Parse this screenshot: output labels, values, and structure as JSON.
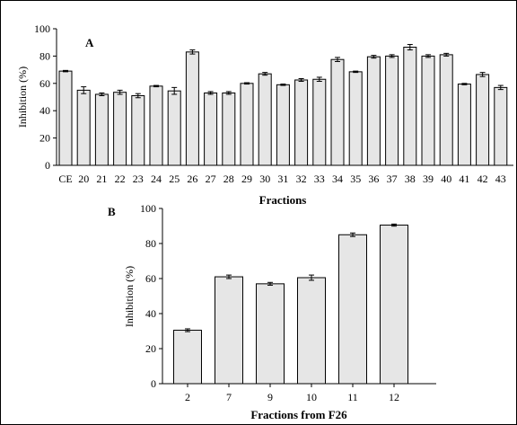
{
  "chart_data": [
    {
      "type": "bar",
      "panel_label": "A",
      "ylabel": "Inhibition (%)",
      "xlabel": "Fractions",
      "ylim": [
        0,
        100
      ],
      "yticks": [
        "0",
        "20",
        "40",
        "60",
        "80",
        "100"
      ],
      "categories": [
        "CE",
        "20",
        "21",
        "22",
        "23",
        "24",
        "25",
        "26",
        "27",
        "28",
        "29",
        "30",
        "31",
        "32",
        "33",
        "34",
        "35",
        "36",
        "37",
        "38",
        "39",
        "40",
        "41",
        "42",
        "43"
      ],
      "values": [
        69,
        55,
        52,
        53.5,
        51,
        58,
        54.5,
        83,
        53,
        53,
        60,
        67,
        59,
        62.5,
        63,
        77.5,
        68.5,
        79.5,
        80,
        86.5,
        80,
        81,
        59.5,
        66.5,
        57
      ],
      "errors": [
        0.5,
        2.5,
        1,
        1.5,
        1.5,
        0.5,
        2.5,
        1.5,
        1,
        1,
        0.5,
        1,
        0.5,
        1,
        1.5,
        1.5,
        0.5,
        1,
        1,
        2,
        1,
        1,
        0.5,
        1.5,
        1.5
      ]
    },
    {
      "type": "bar",
      "panel_label": "B",
      "ylabel": "Inhibition (%)",
      "xlabel": "Fractions from F26",
      "ylim": [
        0,
        100
      ],
      "yticks": [
        "0",
        "20",
        "40",
        "60",
        "80",
        "100"
      ],
      "categories": [
        "2",
        "7",
        "9",
        "10",
        "11",
        "12"
      ],
      "values": [
        30.5,
        61,
        57,
        60.5,
        85,
        90.5
      ],
      "errors": [
        0.8,
        1,
        0.8,
        1.5,
        1,
        0.6
      ]
    }
  ]
}
